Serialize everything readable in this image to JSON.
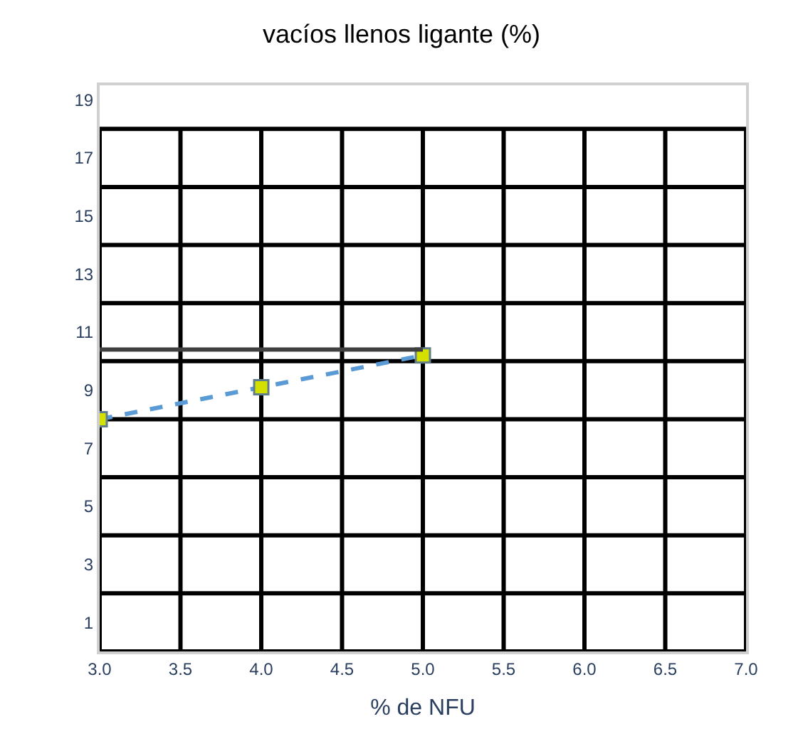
{
  "chart_data": {
    "type": "line",
    "title": "vacíos llenos ligante (%)",
    "xlabel": "% de NFU",
    "x": [
      3.0,
      4.0,
      5.0
    ],
    "series": [
      {
        "color": "#5b9bd5",
        "colors": [
          "#d4e000",
          "#d4e000",
          "#d4e000"
        ],
        "marker": "square",
        "line_style": "dashed",
        "values": [
          8.0,
          9.1,
          10.2
        ]
      },
      {
        "color": "#404040",
        "x": [
          3.0,
          5.0
        ],
        "values": [
          10.4,
          10.4
        ],
        "marker": "none",
        "line_style": "solid"
      }
    ],
    "xlim": [
      3.0,
      7.0
    ],
    "xticks": [
      {
        "value": 3.0,
        "label": "3.0"
      },
      {
        "value": 3.5,
        "label": "3.5"
      },
      {
        "value": 4.0,
        "label": "4.0"
      },
      {
        "value": 4.5,
        "label": "4.5"
      },
      {
        "value": 5.0,
        "label": "5.0"
      },
      {
        "value": 5.5,
        "label": "5.5"
      },
      {
        "value": 6.0,
        "label": "6.0"
      },
      {
        "value": 6.5,
        "label": "6.5"
      },
      {
        "value": 7.0,
        "label": "7.0"
      }
    ],
    "ylim": [
      0,
      19.5
    ],
    "yticks": [
      {
        "value": 0,
        "label": null
      },
      1,
      {
        "value": 2,
        "label": null
      },
      3,
      {
        "value": 4,
        "label": null
      },
      5,
      {
        "value": 6,
        "label": null
      },
      7,
      {
        "value": 8,
        "label": null
      },
      9,
      {
        "value": 10,
        "label": null
      },
      11,
      {
        "value": 12,
        "label": null
      },
      13,
      {
        "value": 14,
        "label": null
      },
      15,
      {
        "value": 16,
        "label": null
      },
      17,
      {
        "value": 18,
        "label": null
      },
      19
    ],
    "grid": true
  }
}
